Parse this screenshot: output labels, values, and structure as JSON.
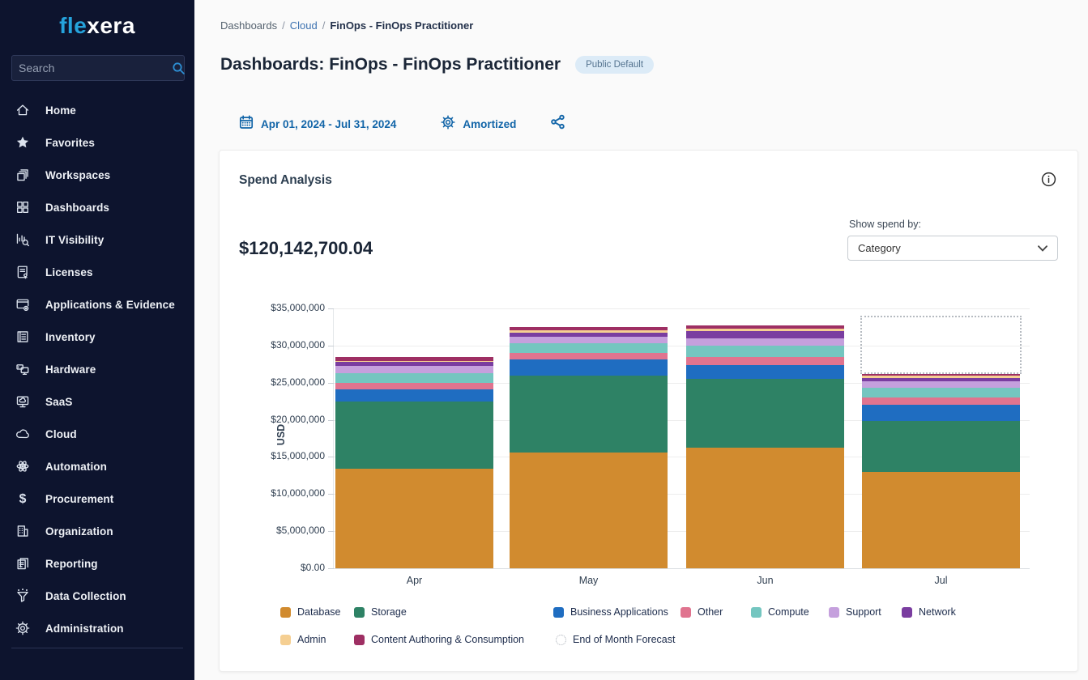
{
  "sidebar": {
    "logo": {
      "prefix": "fle",
      "suffix": "xera"
    },
    "search": {
      "placeholder": "Search"
    },
    "items": [
      {
        "label": "Home",
        "icon": "home-icon"
      },
      {
        "label": "Favorites",
        "icon": "star-icon"
      },
      {
        "label": "Workspaces",
        "icon": "workspaces-icon"
      },
      {
        "label": "Dashboards",
        "icon": "dashboards-icon"
      },
      {
        "label": "IT Visibility",
        "icon": "it-visibility-icon"
      },
      {
        "label": "Licenses",
        "icon": "licenses-icon"
      },
      {
        "label": "Applications & Evidence",
        "icon": "applications-icon"
      },
      {
        "label": "Inventory",
        "icon": "inventory-icon"
      },
      {
        "label": "Hardware",
        "icon": "hardware-icon"
      },
      {
        "label": "SaaS",
        "icon": "saas-icon"
      },
      {
        "label": "Cloud",
        "icon": "cloud-icon"
      },
      {
        "label": "Automation",
        "icon": "automation-icon"
      },
      {
        "label": "Procurement",
        "icon": "procurement-icon"
      },
      {
        "label": "Organization",
        "icon": "organization-icon"
      },
      {
        "label": "Reporting",
        "icon": "reporting-icon"
      },
      {
        "label": "Data Collection",
        "icon": "data-collection-icon"
      },
      {
        "label": "Administration",
        "icon": "administration-icon"
      }
    ]
  },
  "breadcrumb": [
    "Dashboards",
    "Cloud",
    "FinOps - FinOps Practitioner"
  ],
  "header": {
    "title": "Dashboards: FinOps - FinOps Practitioner",
    "badge": "Public Default"
  },
  "toolbar": {
    "date_range": "Apr 01, 2024 - Jul 31, 2024",
    "cost_type": "Amortized"
  },
  "panel": {
    "title": "Spend Analysis",
    "total": "$120,142,700.04",
    "show_spend_by_label": "Show spend by:",
    "spend_by_value": "Category"
  },
  "chart_data": {
    "type": "bar",
    "stacked": true,
    "title": "Spend Analysis",
    "xlabel": "",
    "ylabel": "USD",
    "categories": [
      "Apr",
      "May",
      "Jun",
      "Jul"
    ],
    "ylim": [
      0,
      35000000
    ],
    "yticks": [
      0,
      5000000,
      10000000,
      15000000,
      20000000,
      25000000,
      30000000,
      35000000
    ],
    "ytick_labels": [
      "$0.00",
      "$5,000,000",
      "$10,000,000",
      "$15,000,000",
      "$20,000,000",
      "$25,000,000",
      "$30,000,000",
      "$35,000,000"
    ],
    "grid": true,
    "legend_position": "bottom",
    "series": [
      {
        "name": "Database",
        "color": "#d18b2f",
        "values": [
          13450000,
          15600000,
          16200000,
          13000000
        ]
      },
      {
        "name": "Storage",
        "color": "#2e8265",
        "values": [
          9000000,
          10400000,
          9300000,
          6800000
        ]
      },
      {
        "name": "Business Applications",
        "color": "#1f6dc1",
        "values": [
          1650000,
          2100000,
          1900000,
          2200000
        ]
      },
      {
        "name": "Other",
        "color": "#e0748f",
        "values": [
          900000,
          900000,
          1100000,
          1000000
        ]
      },
      {
        "name": "Compute",
        "color": "#74c6c0",
        "values": [
          1300000,
          1300000,
          1500000,
          1300000
        ]
      },
      {
        "name": "Support",
        "color": "#c5a0dd",
        "values": [
          1000000,
          900000,
          1000000,
          900000
        ]
      },
      {
        "name": "Network",
        "color": "#7a3da0",
        "values": [
          550000,
          550000,
          1000000,
          450000
        ]
      },
      {
        "name": "Admin",
        "color": "#f5cf92",
        "values": [
          100000,
          300000,
          330000,
          250000
        ]
      },
      {
        "name": "Content Authoring & Consumption",
        "color": "#9e2f63",
        "values": [
          500000,
          400000,
          330000,
          300000
        ]
      }
    ],
    "forecast": {
      "label": "End of Month Forecast",
      "category": "Jul",
      "total_value": 34000000
    },
    "legend_rows": [
      [
        "Database",
        "Storage",
        "Business Applications",
        "Other",
        "Compute",
        "Support",
        "Network"
      ],
      [
        "Admin",
        "Content Authoring & Consumption",
        "End of Month Forecast"
      ]
    ]
  },
  "colors": {
    "accent_blue": "#1265a8",
    "logo_blue": "#25a3dc",
    "sidebar_bg": "#0d142e",
    "badge_bg": "#dcebf7"
  }
}
